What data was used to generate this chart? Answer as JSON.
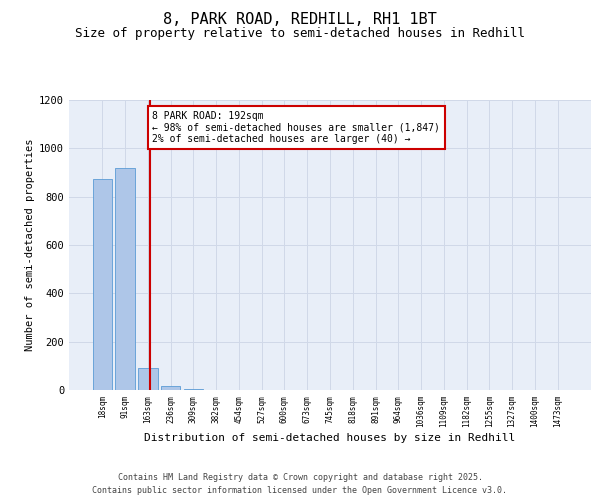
{
  "title": "8, PARK ROAD, REDHILL, RH1 1BT",
  "subtitle": "Size of property relative to semi-detached houses in Redhill",
  "xlabel": "Distribution of semi-detached houses by size in Redhill",
  "ylabel": "Number of semi-detached properties",
  "categories": [
    "18sqm",
    "91sqm",
    "163sqm",
    "236sqm",
    "309sqm",
    "382sqm",
    "454sqm",
    "527sqm",
    "600sqm",
    "673sqm",
    "745sqm",
    "818sqm",
    "891sqm",
    "964sqm",
    "1036sqm",
    "1109sqm",
    "1182sqm",
    "1255sqm",
    "1327sqm",
    "1400sqm",
    "1473sqm"
  ],
  "values": [
    875,
    920,
    90,
    15,
    4,
    2,
    1,
    1,
    0,
    0,
    0,
    0,
    0,
    0,
    0,
    0,
    0,
    0,
    0,
    0,
    0
  ],
  "bar_color": "#aec6e8",
  "bar_edge_color": "#5b9bd5",
  "red_line_x": 2.08,
  "red_line_color": "#cc0000",
  "annotation_text": "8 PARK ROAD: 192sqm\n← 98% of semi-detached houses are smaller (1,847)\n2% of semi-detached houses are larger (40) →",
  "annotation_box_color": "#ffffff",
  "annotation_box_edge_color": "#cc0000",
  "ylim": [
    0,
    1200
  ],
  "yticks": [
    0,
    200,
    400,
    600,
    800,
    1000,
    1200
  ],
  "grid_color": "#d0d8e8",
  "background_color": "#e8eef8",
  "footer_line1": "Contains HM Land Registry data © Crown copyright and database right 2025.",
  "footer_line2": "Contains public sector information licensed under the Open Government Licence v3.0.",
  "title_fontsize": 11,
  "subtitle_fontsize": 9,
  "annotation_fontsize": 7,
  "footer_fontsize": 6
}
